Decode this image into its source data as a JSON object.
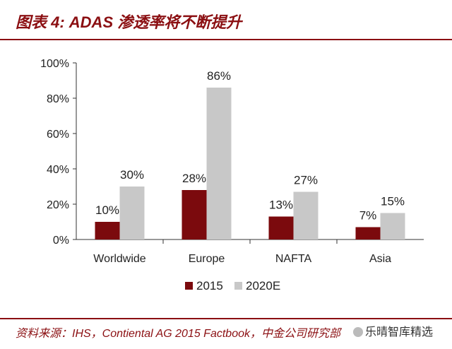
{
  "header": {
    "title": "图表 4: ADAS 渗透率将不断提升"
  },
  "footer": {
    "source": "资料来源：IHS，Contiental AG 2015 Factbook，中金公司研究部",
    "watermark": "乐晴智库精选"
  },
  "colors": {
    "series_2015": "#7b0a0d",
    "series_2020E": "#c8c8c8",
    "accent": "#8b0f12"
  },
  "chart_data": {
    "type": "bar",
    "title": "ADAS 渗透率将不断提升",
    "categories": [
      "Worldwide",
      "Europe",
      "NAFTA",
      "Asia"
    ],
    "series": [
      {
        "name": "2015",
        "values": [
          10,
          28,
          13,
          7
        ],
        "labels": [
          "10%",
          "28%",
          "13%",
          "7%"
        ]
      },
      {
        "name": "2020E",
        "values": [
          30,
          86,
          27,
          15
        ],
        "labels": [
          "30%",
          "86%",
          "27%",
          "15%"
        ]
      }
    ],
    "yticks": [
      "0%",
      "20%",
      "40%",
      "60%",
      "80%",
      "100%"
    ],
    "ylim": [
      0,
      100
    ],
    "xlabel": "",
    "ylabel": "",
    "legend": "bottom-center",
    "grid": false
  }
}
